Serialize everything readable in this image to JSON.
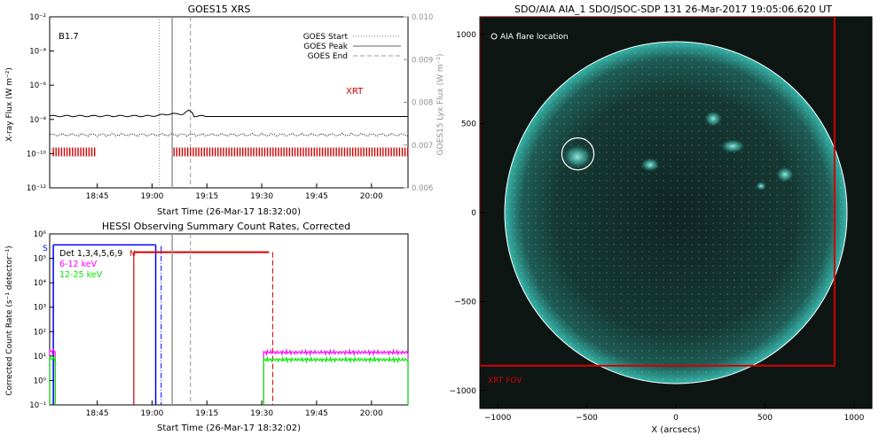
{
  "colors": {
    "xrt_red": "#d40000",
    "axis": "#000000",
    "gray_axis": "#909090",
    "sun_cyan": "#29b7ae",
    "hessi_blue": "#0000ff",
    "magenta": "#ff00ff",
    "green": "#00ee00"
  },
  "chart_data": [
    {
      "id": "goes",
      "type": "line",
      "title": "GOES15 XRS",
      "xlabel": "Start Time (26-Mar-17 18:32:00)",
      "ylabel": "X-ray Flux (W m⁻²)",
      "y2label": "GOES15 Lyx Flux (W m⁻²)",
      "class_label": "B1.7",
      "ylim_log10": [
        -12,
        -2
      ],
      "yscale": "log",
      "y2lim": [
        0.006,
        0.01
      ],
      "xlim_min": [
        0,
        98
      ],
      "xticks_min": [
        13,
        28,
        43,
        58,
        73,
        88
      ],
      "xtick_labels": [
        "18:45",
        "19:00",
        "19:15",
        "19:30",
        "19:45",
        "20:00"
      ],
      "ytick_labels": [
        "10⁻²",
        "10⁻⁴",
        "10⁻⁶",
        "10⁻⁸",
        "10⁻¹⁰",
        "10⁻¹²"
      ],
      "y2tick_labels": [
        "0.010",
        "0.009",
        "0.008",
        "0.007",
        "0.006"
      ],
      "legend": [
        "GOES Start",
        "GOES Peak",
        "GOES End"
      ],
      "legend_position": "top-right",
      "xrt_label": "XRT",
      "events_min": {
        "start": 30,
        "peak": 33.5,
        "end": 38.5
      },
      "series": [
        {
          "name": "",
          "style": "solid",
          "log10_flux": -7.8,
          "bump_min": 38,
          "bump_log10": -7.45
        },
        {
          "name": "",
          "style": "dotted",
          "log10_flux": -8.9
        }
      ],
      "xrt_coverage_min": [
        [
          1,
          13
        ],
        [
          34,
          98
        ]
      ],
      "xrt_log10_y": -9.9
    },
    {
      "id": "hessi",
      "type": "line",
      "title": "HESSI Observing Summary Count Rates, Corrected",
      "xlabel": "Start Time (26-Mar-17 18:32:02)",
      "ylabel": "Corrected Count Rate (s⁻¹ detector⁻¹)",
      "ylim_log10": [
        -1,
        6
      ],
      "yscale": "log",
      "xlim_min": [
        0,
        98
      ],
      "xticks_min": [
        13,
        28,
        43,
        58,
        73,
        88
      ],
      "xtick_labels": [
        "18:45",
        "19:00",
        "19:15",
        "19:30",
        "19:45",
        "20:00"
      ],
      "ytick_labels": [
        "10⁶",
        "10⁵",
        "10⁴",
        "10³",
        "10²",
        "10¹",
        "10⁰",
        "10⁻¹"
      ],
      "legend": [
        "Det 1,3,4,5,6,9",
        "6-12 keV",
        "12-25 keV"
      ],
      "legend_position": "top-left",
      "flag_labels": {
        "s": "S",
        "n": "N"
      },
      "series": [
        {
          "name": "6-12 keV",
          "segments": [
            {
              "x": [
                0,
                1.5
              ],
              "log10": 1.2
            },
            {
              "x": [
                58.5,
                98
              ],
              "log10": 1.15
            }
          ]
        },
        {
          "name": "12-25 keV",
          "segments": [
            {
              "x": [
                0,
                1.5
              ],
              "log10": 0.9
            },
            {
              "x": [
                58.5,
                98
              ],
              "log10": 0.85
            }
          ]
        }
      ],
      "saa_flag_min": [
        1,
        29
      ],
      "night_flag_min": [
        23,
        60
      ],
      "dash_dot_min": 30.5,
      "gray_lines_min": [
        33.5,
        38.5
      ],
      "red_dash_min": 61
    },
    {
      "id": "aia",
      "type": "image",
      "title": "SDO/AIA AIA_1 SDO/JSOC-SDP 131 26-Mar-2017 19:05:06.620 UT",
      "xlabel": "X (arcsecs)",
      "xlim": [
        -1100,
        1100
      ],
      "ylim": [
        -1100,
        1100
      ],
      "xticks": [
        -1000,
        -500,
        0,
        500,
        1000
      ],
      "yticks": [
        1000,
        500,
        0,
        -500,
        -1000
      ],
      "xtick_labels": [
        "−1000",
        "−500",
        "0",
        "500",
        "1000"
      ],
      "ytick_labels": [
        "1000",
        "500",
        "0",
        "−500",
        "−1000"
      ],
      "solar_radius_arcsec": 960,
      "flare_location": {
        "x": -550,
        "y": 330,
        "radius": 90
      },
      "flare_label": "AIA flare location",
      "xrt_fov": {
        "x": [
          -1100,
          890
        ],
        "y": [
          -860,
          1100
        ]
      },
      "xrt_fov_label": "XRT FOV"
    }
  ]
}
